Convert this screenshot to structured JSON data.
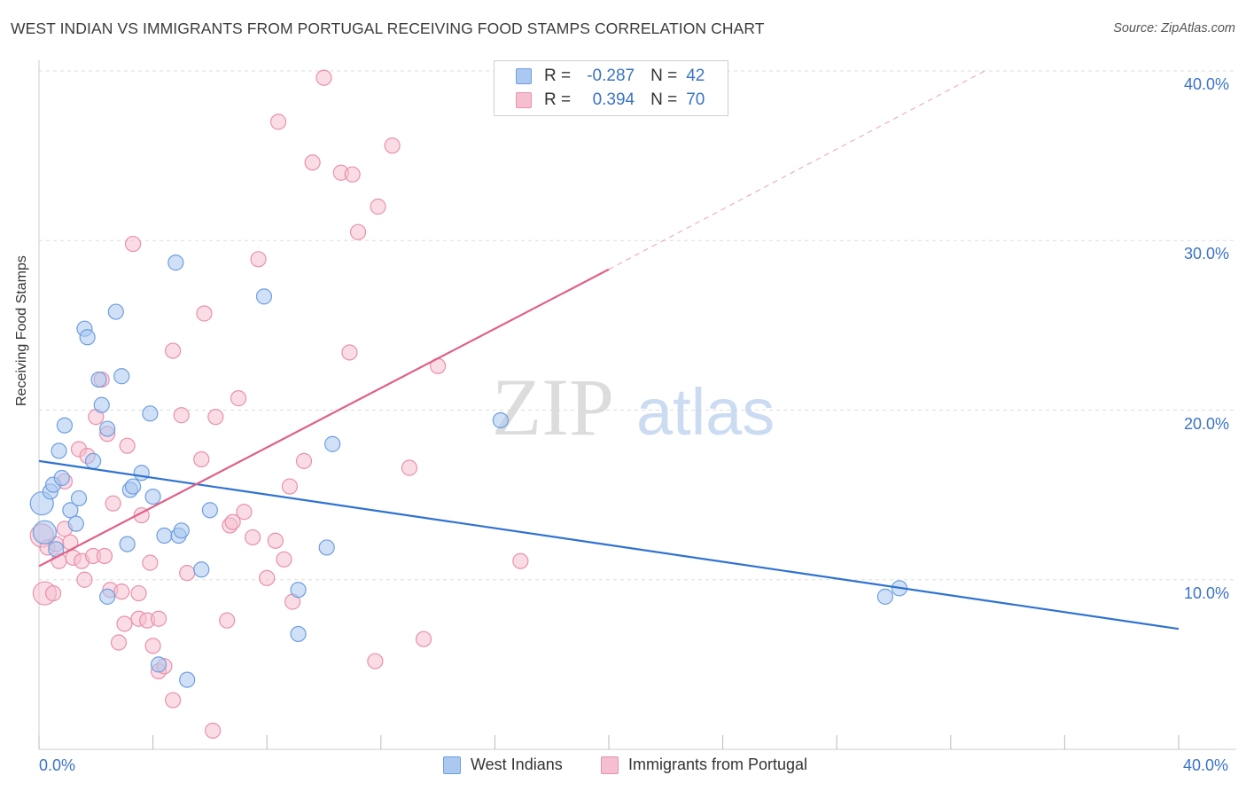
{
  "header": {
    "title": "WEST INDIAN VS IMMIGRANTS FROM PORTUGAL RECEIVING FOOD STAMPS CORRELATION CHART",
    "source": "Source: ZipAtlas.com"
  },
  "watermark": {
    "zip": "ZIP",
    "atlas": "atlas"
  },
  "legend_top": {
    "rows": [
      {
        "r_label": "R =",
        "r_value": "-0.287",
        "n_label": "N =",
        "n_value": "42"
      },
      {
        "r_label": "R =",
        "r_value": "0.394",
        "n_label": "N =",
        "n_value": "70"
      }
    ]
  },
  "legend_bottom": {
    "series1": "West Indians",
    "series2": "Immigrants from Portugal"
  },
  "colors": {
    "blue_fill": "#aac8f0",
    "blue_stroke": "#6f9ee0",
    "blue_line": "#2f72d2",
    "pink_fill": "#f6bfd0",
    "pink_stroke": "#e891ad",
    "pink_line": "#e0608a",
    "axis_text": "#3a73c8",
    "grid": "#dddddd"
  },
  "chart_data": {
    "type": "scatter",
    "title": "WEST INDIAN VS IMMIGRANTS FROM PORTUGAL RECEIVING FOOD STAMPS CORRELATION CHART",
    "xlabel": "",
    "ylabel": "Receiving Food Stamps",
    "xlim": [
      0,
      40
    ],
    "ylim": [
      0,
      40
    ],
    "x_tick_labels": [
      "0.0%",
      "40.0%"
    ],
    "y_ticks": [
      10,
      20,
      30,
      40
    ],
    "y_tick_labels": [
      "10.0%",
      "20.0%",
      "30.0%",
      "40.0%"
    ],
    "grid": true,
    "series": [
      {
        "name": "West Indians",
        "r": -0.287,
        "n": 42,
        "trend": {
          "x": [
            0,
            40
          ],
          "y": [
            17.0,
            7.1
          ],
          "style": "solid"
        },
        "points": [
          [
            0.1,
            14.5
          ],
          [
            0.2,
            12.8
          ],
          [
            0.4,
            15.2
          ],
          [
            0.5,
            15.6
          ],
          [
            0.6,
            11.8
          ],
          [
            0.7,
            17.6
          ],
          [
            0.8,
            16.0
          ],
          [
            0.9,
            19.1
          ],
          [
            1.1,
            14.1
          ],
          [
            1.3,
            13.3
          ],
          [
            1.4,
            14.8
          ],
          [
            1.6,
            24.8
          ],
          [
            1.7,
            24.3
          ],
          [
            1.9,
            17.0
          ],
          [
            2.1,
            21.8
          ],
          [
            2.2,
            20.3
          ],
          [
            2.4,
            18.9
          ],
          [
            2.4,
            9.0
          ],
          [
            2.7,
            25.8
          ],
          [
            2.9,
            22.0
          ],
          [
            3.1,
            12.1
          ],
          [
            3.2,
            15.3
          ],
          [
            3.3,
            15.5
          ],
          [
            3.6,
            16.3
          ],
          [
            3.9,
            19.8
          ],
          [
            4.0,
            14.9
          ],
          [
            4.2,
            5.0
          ],
          [
            4.4,
            12.6
          ],
          [
            4.8,
            28.7
          ],
          [
            4.9,
            12.6
          ],
          [
            5.0,
            12.9
          ],
          [
            5.2,
            4.1
          ],
          [
            5.7,
            10.6
          ],
          [
            6.0,
            14.1
          ],
          [
            7.9,
            26.7
          ],
          [
            9.1,
            9.4
          ],
          [
            9.1,
            6.8
          ],
          [
            10.1,
            11.9
          ],
          [
            10.3,
            18.0
          ],
          [
            16.2,
            19.4
          ],
          [
            29.7,
            9.0
          ],
          [
            30.2,
            9.5
          ]
        ]
      },
      {
        "name": "Immigrants from Portugal",
        "r": 0.394,
        "n": 70,
        "trend": {
          "x": [
            0,
            20
          ],
          "y": [
            10.8,
            28.3
          ],
          "dashed_extension": {
            "x": [
              20,
              33.2
            ],
            "y": [
              28.3,
              40.0
            ]
          }
        },
        "points": [
          [
            0.1,
            12.6
          ],
          [
            0.2,
            9.2
          ],
          [
            0.3,
            11.9
          ],
          [
            0.5,
            9.2
          ],
          [
            0.6,
            12.1
          ],
          [
            0.7,
            11.1
          ],
          [
            0.9,
            15.8
          ],
          [
            0.9,
            13.0
          ],
          [
            1.1,
            12.2
          ],
          [
            1.2,
            11.3
          ],
          [
            1.4,
            17.7
          ],
          [
            1.5,
            11.1
          ],
          [
            1.6,
            10.0
          ],
          [
            1.7,
            17.3
          ],
          [
            1.9,
            11.4
          ],
          [
            2.0,
            19.6
          ],
          [
            2.2,
            21.8
          ],
          [
            2.3,
            11.4
          ],
          [
            2.4,
            18.6
          ],
          [
            2.5,
            9.4
          ],
          [
            2.6,
            14.5
          ],
          [
            2.8,
            6.3
          ],
          [
            2.9,
            9.3
          ],
          [
            3.0,
            7.4
          ],
          [
            3.1,
            17.9
          ],
          [
            3.3,
            29.8
          ],
          [
            3.5,
            7.7
          ],
          [
            3.5,
            9.2
          ],
          [
            3.6,
            13.8
          ],
          [
            3.8,
            7.6
          ],
          [
            3.9,
            11.0
          ],
          [
            4.0,
            6.1
          ],
          [
            4.2,
            7.7
          ],
          [
            4.2,
            4.6
          ],
          [
            4.4,
            4.9
          ],
          [
            4.7,
            2.9
          ],
          [
            4.7,
            23.5
          ],
          [
            5.0,
            19.7
          ],
          [
            5.2,
            10.4
          ],
          [
            5.7,
            17.1
          ],
          [
            5.8,
            25.7
          ],
          [
            6.1,
            1.1
          ],
          [
            6.2,
            19.6
          ],
          [
            6.6,
            7.6
          ],
          [
            6.7,
            13.2
          ],
          [
            6.8,
            13.4
          ],
          [
            7.0,
            20.7
          ],
          [
            7.2,
            14.0
          ],
          [
            7.5,
            12.5
          ],
          [
            7.7,
            28.9
          ],
          [
            8.0,
            10.1
          ],
          [
            8.3,
            12.3
          ],
          [
            8.4,
            37.0
          ],
          [
            8.6,
            11.2
          ],
          [
            8.8,
            15.5
          ],
          [
            8.9,
            8.7
          ],
          [
            9.3,
            17.0
          ],
          [
            9.6,
            34.6
          ],
          [
            10.0,
            39.6
          ],
          [
            10.6,
            34.0
          ],
          [
            10.9,
            23.4
          ],
          [
            11.0,
            33.9
          ],
          [
            11.2,
            30.5
          ],
          [
            11.8,
            5.2
          ],
          [
            11.9,
            32.0
          ],
          [
            12.4,
            35.6
          ],
          [
            13.0,
            16.6
          ],
          [
            13.5,
            6.5
          ],
          [
            14.0,
            22.6
          ],
          [
            16.9,
            11.1
          ]
        ]
      }
    ]
  }
}
